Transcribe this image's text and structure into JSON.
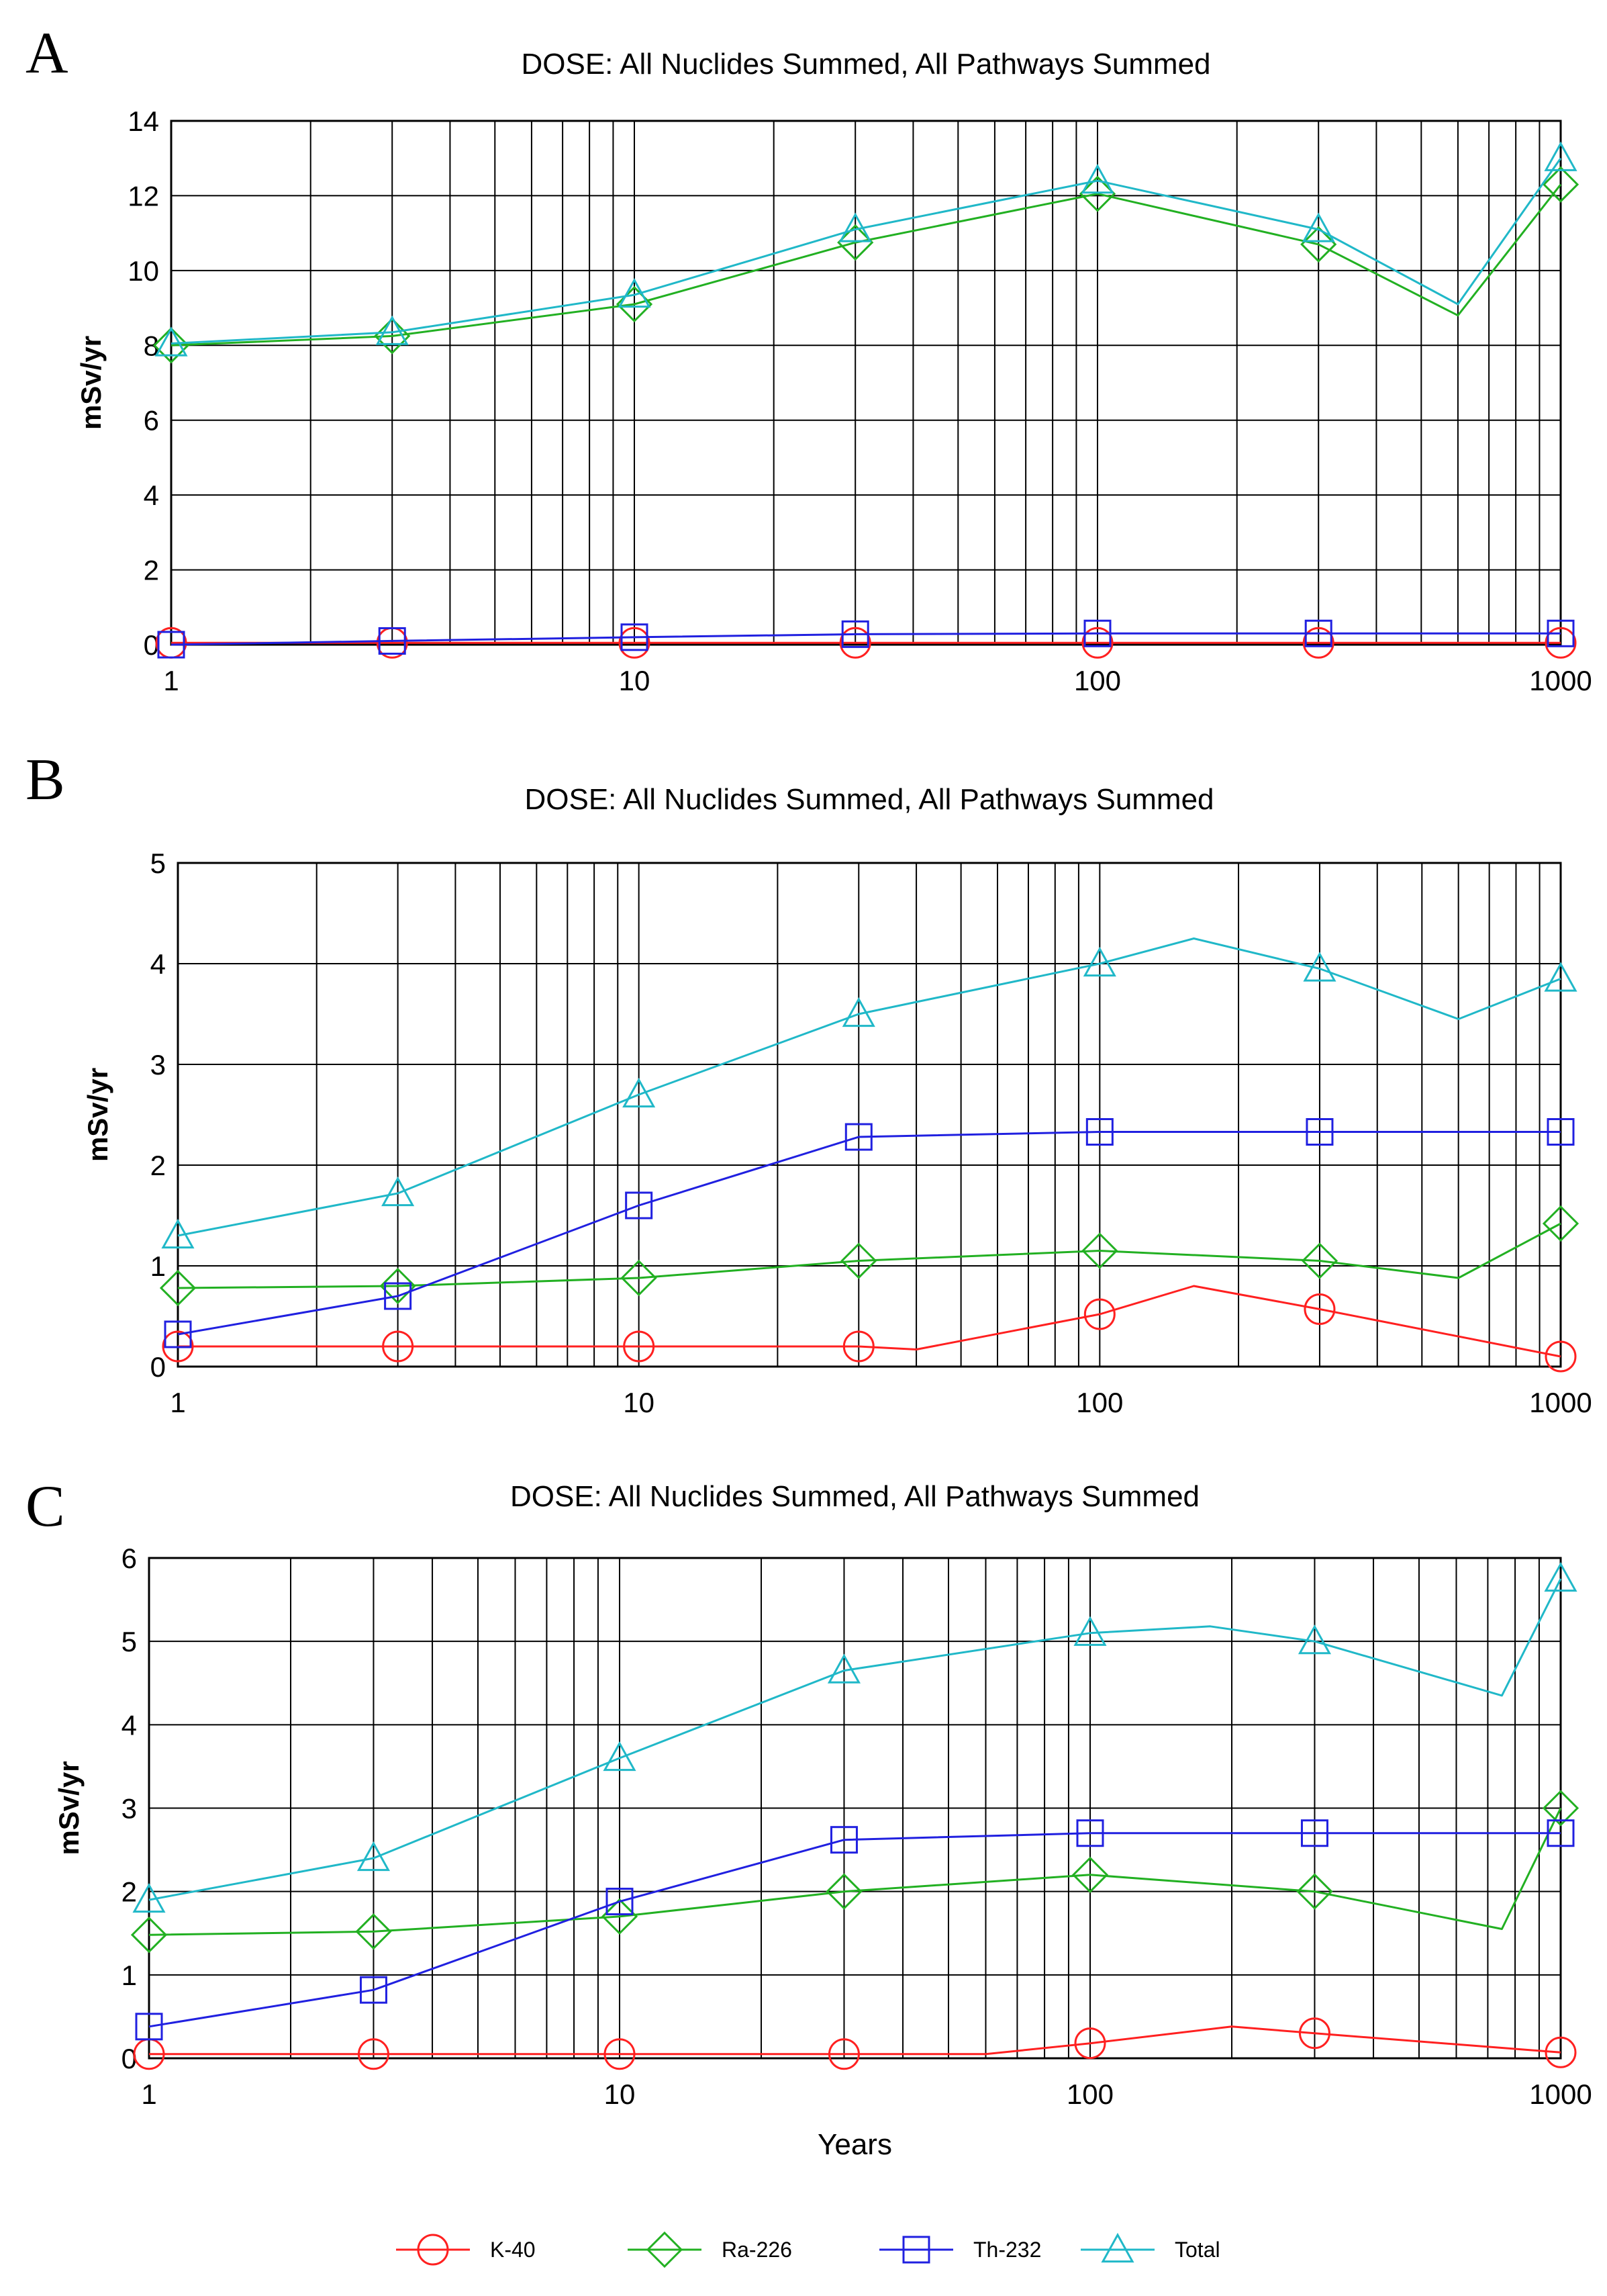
{
  "legend": [
    {
      "name": "K-40",
      "color": "#ff2020",
      "marker": "circle"
    },
    {
      "name": "Ra-226",
      "color": "#22b022",
      "marker": "diamond"
    },
    {
      "name": "Th-232",
      "color": "#2020e0",
      "marker": "square"
    },
    {
      "name": "Total",
      "color": "#20b8c8",
      "marker": "triangle"
    }
  ],
  "chart_data": [
    {
      "panel": "A",
      "type": "line",
      "title": "DOSE: All Nuclides Summed, All Pathways Summed",
      "xlabel": "",
      "ylabel": "mSv/yr",
      "xscale": "log",
      "xlim": [
        1,
        1000
      ],
      "ylim": [
        0,
        14
      ],
      "yticks": [
        0,
        2,
        4,
        6,
        8,
        10,
        12,
        14
      ],
      "xticks": [
        1,
        10,
        100,
        1000
      ],
      "series": [
        {
          "name": "K-40",
          "x": [
            1,
            3,
            10,
            30,
            100,
            300,
            1000
          ],
          "y": [
            0.05,
            0.05,
            0.05,
            0.05,
            0.05,
            0.05,
            0.05
          ]
        },
        {
          "name": "Ra-226",
          "x": [
            1,
            3,
            10,
            30,
            100,
            300,
            600,
            1000
          ],
          "y": [
            8.0,
            8.25,
            9.1,
            10.75,
            12.05,
            10.7,
            8.8,
            12.3
          ]
        },
        {
          "name": "Th-232",
          "x": [
            1,
            3,
            10,
            30,
            100,
            300,
            1000
          ],
          "y": [
            0.0,
            0.1,
            0.2,
            0.28,
            0.3,
            0.3,
            0.3
          ]
        },
        {
          "name": "Total",
          "x": [
            1,
            3,
            10,
            30,
            100,
            300,
            600,
            1000
          ],
          "y": [
            8.05,
            8.35,
            9.35,
            11.1,
            12.4,
            11.1,
            9.1,
            13.0
          ]
        }
      ]
    },
    {
      "panel": "B",
      "type": "line",
      "title": "DOSE: All Nuclides Summed, All Pathways Summed",
      "xlabel": "",
      "ylabel": "mSv/yr",
      "xscale": "log",
      "xlim": [
        1,
        1000
      ],
      "ylim": [
        0,
        5
      ],
      "yticks": [
        0,
        1,
        2,
        3,
        4,
        5
      ],
      "xticks": [
        1,
        10,
        100,
        1000
      ],
      "series": [
        {
          "name": "K-40",
          "x": [
            1,
            3,
            10,
            30,
            40,
            100,
            160,
            300,
            1000
          ],
          "y": [
            0.2,
            0.2,
            0.2,
            0.2,
            0.17,
            0.52,
            0.8,
            0.57,
            0.1
          ]
        },
        {
          "name": "Ra-226",
          "x": [
            1,
            3,
            10,
            30,
            100,
            300,
            600,
            1000
          ],
          "y": [
            0.78,
            0.8,
            0.88,
            1.05,
            1.15,
            1.05,
            0.88,
            1.42
          ]
        },
        {
          "name": "Th-232",
          "x": [
            1,
            3,
            10,
            30,
            100,
            300,
            1000
          ],
          "y": [
            0.32,
            0.7,
            1.6,
            2.28,
            2.33,
            2.33,
            2.33
          ]
        },
        {
          "name": "Total",
          "x": [
            1,
            3,
            10,
            30,
            100,
            160,
            300,
            600,
            1000
          ],
          "y": [
            1.3,
            1.72,
            2.7,
            3.5,
            4.0,
            4.25,
            3.95,
            3.45,
            3.85
          ]
        }
      ]
    },
    {
      "panel": "C",
      "type": "line",
      "title": "DOSE: All Nuclides Summed, All Pathways Summed",
      "xlabel": "Years",
      "ylabel": "mSv/yr",
      "xscale": "log",
      "xlim": [
        1,
        1000
      ],
      "ylim": [
        0,
        6
      ],
      "yticks": [
        0,
        1,
        2,
        3,
        4,
        5,
        6
      ],
      "xticks": [
        1,
        10,
        100,
        1000
      ],
      "series": [
        {
          "name": "K-40",
          "x": [
            1,
            3,
            10,
            30,
            60,
            100,
            200,
            300,
            1000
          ],
          "y": [
            0.05,
            0.05,
            0.05,
            0.05,
            0.05,
            0.18,
            0.38,
            0.3,
            0.07
          ]
        },
        {
          "name": "Ra-226",
          "x": [
            1,
            3,
            10,
            30,
            100,
            300,
            750,
            1000
          ],
          "y": [
            1.48,
            1.52,
            1.7,
            2.0,
            2.2,
            2.0,
            1.55,
            3.0
          ]
        },
        {
          "name": "Th-232",
          "x": [
            1,
            3,
            10,
            30,
            100,
            300,
            1000
          ],
          "y": [
            0.38,
            0.82,
            1.88,
            2.62,
            2.7,
            2.7,
            2.7
          ]
        },
        {
          "name": "Total",
          "x": [
            1,
            3,
            10,
            30,
            100,
            180,
            300,
            750,
            1000
          ],
          "y": [
            1.9,
            2.4,
            3.6,
            4.65,
            5.1,
            5.18,
            5.0,
            4.35,
            5.75
          ]
        }
      ]
    }
  ]
}
